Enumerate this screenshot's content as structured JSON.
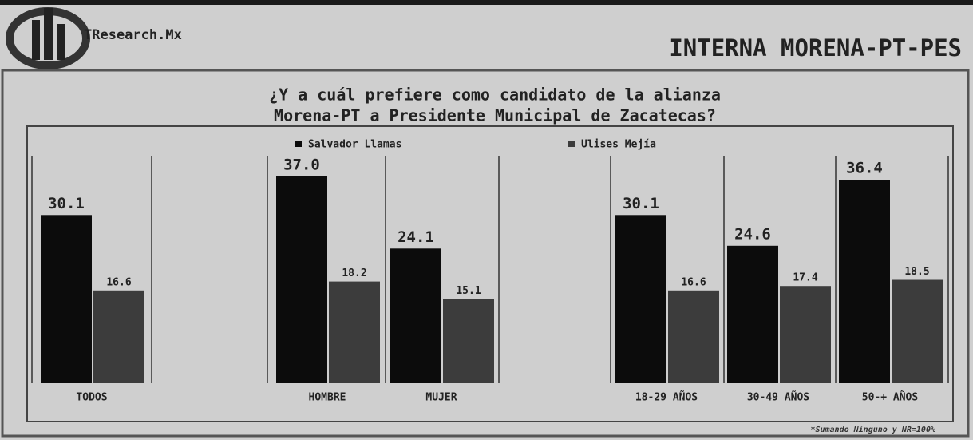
{
  "header": {
    "brand": "TResearch.Mx",
    "heading": "INTERNA MORENA-PT-PES"
  },
  "chart_data": {
    "type": "bar",
    "title": [
      "¿Y a cuál prefiere como candidato de la alianza",
      "Morena-PT a Presidente Municipal de Zacatecas?"
    ],
    "categories": [
      "TODOS",
      "HOMBRE",
      "MUJER",
      "18-29 AÑOS",
      "30-49 AÑOS",
      "50-+ AÑOS"
    ],
    "series": [
      {
        "name": "Salvador Llamas",
        "color": "#0c0c0c",
        "values": [
          30.1,
          37.0,
          24.1,
          30.1,
          24.6,
          36.4
        ],
        "value_labels": [
          "30.1",
          "37.0",
          "24.1",
          "30.1",
          "24.6",
          "36.4"
        ]
      },
      {
        "name": "Ulises Mejía",
        "color": "#3c3c3c",
        "values": [
          16.6,
          18.2,
          15.1,
          16.6,
          17.4,
          18.5
        ]
      }
    ],
    "ylim": [
      0,
      40
    ],
    "footnote": "*Sumando Ninguno y NR=100%"
  }
}
